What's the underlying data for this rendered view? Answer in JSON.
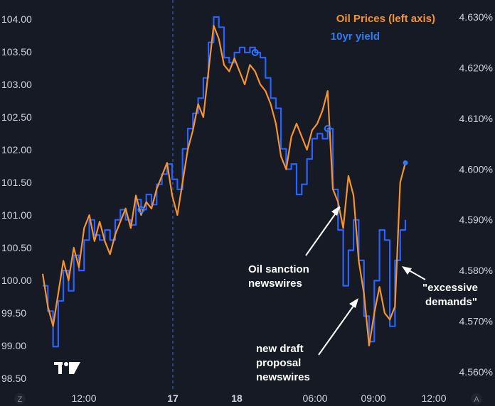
{
  "chart_data": {
    "type": "line",
    "left_axis": {
      "ylim": [
        98.5,
        104.1
      ],
      "ticks": [
        "98.50",
        "99.00",
        "99.50",
        "100.00",
        "100.50",
        "101.00",
        "101.50",
        "102.00",
        "102.50",
        "103.00",
        "103.50",
        "104.00"
      ]
    },
    "right_axis": {
      "ylim": [
        4.558,
        4.631
      ],
      "ticks": [
        "4.560%",
        "4.570%",
        "4.580%",
        "4.590%",
        "4.600%",
        "4.610%",
        "4.620%",
        "4.630%"
      ]
    },
    "x_ticks": [
      {
        "label": "12:00",
        "bold": false
      },
      {
        "label": "17",
        "bold": true
      },
      {
        "label": "18",
        "bold": true
      },
      {
        "label": "06:00",
        "bold": false
      },
      {
        "label": "09:00",
        "bold": false
      },
      {
        "label": "12:00",
        "bold": false
      }
    ],
    "series": [
      {
        "name": "Oil Prices (left axis)",
        "color": "#f7932d",
        "axis": "left",
        "values": [
          100.1,
          99.6,
          99.3,
          99.8,
          100.3,
          100.0,
          100.5,
          100.2,
          100.8,
          101.0,
          100.6,
          100.9,
          100.6,
          100.4,
          100.7,
          100.9,
          101.1,
          100.8,
          101.3,
          101.0,
          101.2,
          101.1,
          101.4,
          101.6,
          101.8,
          101.3,
          101.0,
          101.5,
          102.0,
          102.3,
          102.7,
          102.5,
          103.2,
          103.9,
          103.7,
          103.3,
          103.2,
          103.4,
          103.2,
          103.0,
          103.3,
          103.2,
          103.0,
          102.9,
          102.7,
          102.4,
          101.9,
          101.7,
          102.2,
          102.4,
          102.2,
          102.0,
          102.3,
          102.4,
          102.6,
          102.9,
          101.4,
          101.2,
          100.8,
          101.6,
          101.3,
          100.3,
          99.8,
          99.0,
          99.5,
          99.9,
          99.5,
          99.4,
          99.6,
          101.5,
          101.8
        ]
      },
      {
        "name": "10yr yield",
        "color": "#2962ff",
        "axis": "right",
        "values": [
          4.577,
          4.572,
          4.565,
          4.574,
          4.58,
          4.576,
          4.583,
          4.58,
          4.586,
          4.59,
          4.587,
          4.586,
          4.588,
          4.586,
          4.59,
          4.592,
          4.59,
          4.589,
          4.594,
          4.592,
          4.595,
          4.593,
          4.597,
          4.599,
          4.601,
          4.598,
          4.596,
          4.604,
          4.608,
          4.611,
          4.614,
          4.618,
          4.625,
          4.63,
          4.628,
          4.622,
          4.621,
          4.623,
          4.624,
          4.623,
          4.624,
          4.623,
          4.622,
          4.618,
          4.614,
          4.612,
          4.604,
          4.6,
          4.601,
          4.595,
          4.597,
          4.602,
          4.606,
          4.607,
          4.606,
          4.608,
          4.596,
          4.588,
          4.577,
          4.584,
          4.59,
          4.582,
          4.571,
          4.566,
          4.578,
          4.588,
          4.586,
          4.569,
          4.582,
          4.588,
          4.59
        ]
      }
    ],
    "markers": [
      {
        "series": "10yr yield",
        "index": 19
      },
      {
        "series": "10yr yield",
        "index": 41
      },
      {
        "series": "10yr yield",
        "index": 55
      }
    ],
    "end_dot": {
      "series": "Oil Prices (left axis)"
    },
    "annotations": [
      {
        "lines": [
          "Oil sanction",
          "newswires"
        ]
      },
      {
        "lines": [
          "new draft",
          "proposal",
          "newswires"
        ]
      },
      {
        "lines": [
          "\"excessive",
          "demands\""
        ]
      }
    ],
    "grid": false,
    "legend": "top-right"
  },
  "corner_labels": {
    "left": "Z",
    "right": "A"
  }
}
